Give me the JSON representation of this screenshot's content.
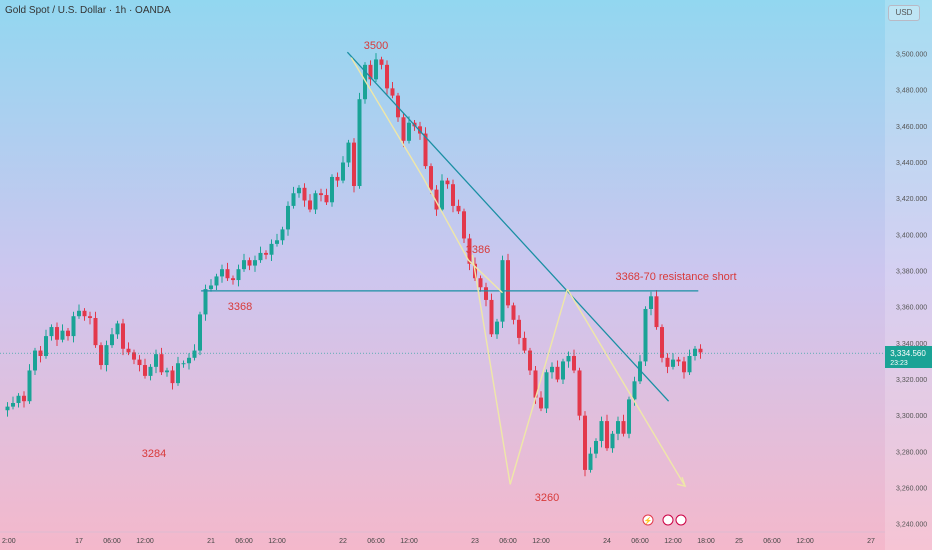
{
  "header": {
    "title": "Gold Spot / U.S. Dollar · 1h · OANDA",
    "currency": "USD"
  },
  "price_label": {
    "price": "3,334.560",
    "countdown": "23:23"
  },
  "colors": {
    "up": "#1aa396",
    "down": "#e3384b",
    "trendline": "#1a8fa3",
    "path": "#efe7a8",
    "annotation": "#d83a3a",
    "bg_top": "#92d7f0",
    "bg_bottom": "#f4b8cb"
  },
  "chart_data": {
    "type": "candlestick",
    "ylim": [
      3230,
      3520
    ],
    "yticks": [
      3240,
      3260,
      3280,
      3300,
      3320,
      3340,
      3360,
      3380,
      3400,
      3420,
      3440,
      3460,
      3480,
      3500
    ],
    "ytick_labels": [
      "3,240.000",
      "3,260.000",
      "3,280.000",
      "3,300.000",
      "3,320.000",
      "3,340.000",
      "3,360.000",
      "3,380.000",
      "3,400.000",
      "3,420.000",
      "3,440.000",
      "3,460.000",
      "3,480.000",
      "3,500.000"
    ],
    "xticks": [
      {
        "label": "2:00",
        "x": 0
      },
      {
        "label": "17",
        "x": 14
      },
      {
        "label": "06:00",
        "x": 20
      },
      {
        "label": "12:00",
        "x": 26
      },
      {
        "label": "21",
        "x": 38
      },
      {
        "label": "06:00",
        "x": 44
      },
      {
        "label": "12:00",
        "x": 50
      },
      {
        "label": "22",
        "x": 62
      },
      {
        "label": "06:00",
        "x": 68
      },
      {
        "label": "12:00",
        "x": 74
      },
      {
        "label": "23",
        "x": 86
      },
      {
        "label": "06:00",
        "x": 92
      },
      {
        "label": "12:00",
        "x": 98
      },
      {
        "label": "24",
        "x": 110
      },
      {
        "label": "06:00",
        "x": 116
      },
      {
        "label": "12:00",
        "x": 122
      },
      {
        "label": "18:00",
        "x": 128
      },
      {
        "label": "25",
        "x": 134
      },
      {
        "label": "06:00",
        "x": 140
      },
      {
        "label": "12:00",
        "x": 146
      },
      {
        "label": "27",
        "x": 158
      }
    ],
    "closes": [
      3303,
      3305,
      3307,
      3311,
      3308,
      3325,
      3336,
      3333,
      3344,
      3349,
      3342,
      3347,
      3344,
      3355,
      3358,
      3355,
      3354,
      3339,
      3328,
      3339,
      3345,
      3351,
      3337,
      3335,
      3331,
      3328,
      3322,
      3327,
      3334,
      3324,
      3325,
      3318,
      3329,
      3329,
      3332,
      3336,
      3356,
      3370,
      3372,
      3377,
      3381,
      3376,
      3375,
      3381,
      3386,
      3383,
      3386,
      3390,
      3389,
      3395,
      3397,
      3403,
      3416,
      3423,
      3426,
      3419,
      3414,
      3423,
      3422,
      3418,
      3432,
      3430,
      3440,
      3451,
      3427,
      3475,
      3494,
      3486,
      3497,
      3494,
      3481,
      3477,
      3465,
      3452,
      3462,
      3460,
      3456,
      3438,
      3425,
      3414,
      3430,
      3428,
      3416,
      3413,
      3398,
      3384,
      3376,
      3371,
      3364,
      3345,
      3352,
      3386,
      3361,
      3353,
      3343,
      3336,
      3325,
      3310,
      3304,
      3324,
      3327,
      3320,
      3330,
      3333,
      3325,
      3300,
      3270,
      3279,
      3286,
      3297,
      3282,
      3290,
      3297,
      3290,
      3309,
      3319,
      3330,
      3359,
      3366,
      3349,
      3332,
      3327,
      3331,
      3330,
      3324,
      3333,
      3337,
      3335
    ],
    "current_price": 3334.56,
    "annotations": {
      "high": "3500",
      "low_left": "3284",
      "level": "3368",
      "mid_high": "3386",
      "low_right": "3260",
      "resistance": "3368-70 resistance short"
    },
    "trendline": {
      "x": [
        62.8,
        121.2
      ],
      "y": [
        3501,
        3308
      ]
    },
    "resistance_line": {
      "x": [
        36.2,
        126.6
      ],
      "y": [
        3369,
        3369
      ]
    },
    "path_lines": [
      {
        "x": [
          63.5,
          76.5,
          84.8,
          91.0
        ],
        "y": [
          3498,
          3432,
          3386,
          3368
        ]
      },
      {
        "x": [
          85.5,
          92.4
        ],
        "y": [
          3389,
          3262
        ]
      },
      {
        "x": [
          92.4,
          102.8
        ],
        "y": [
          3262,
          3370
        ]
      },
      {
        "x": [
          102.8,
          124.2
        ],
        "y": [
          3370,
          3261
        ]
      }
    ]
  }
}
